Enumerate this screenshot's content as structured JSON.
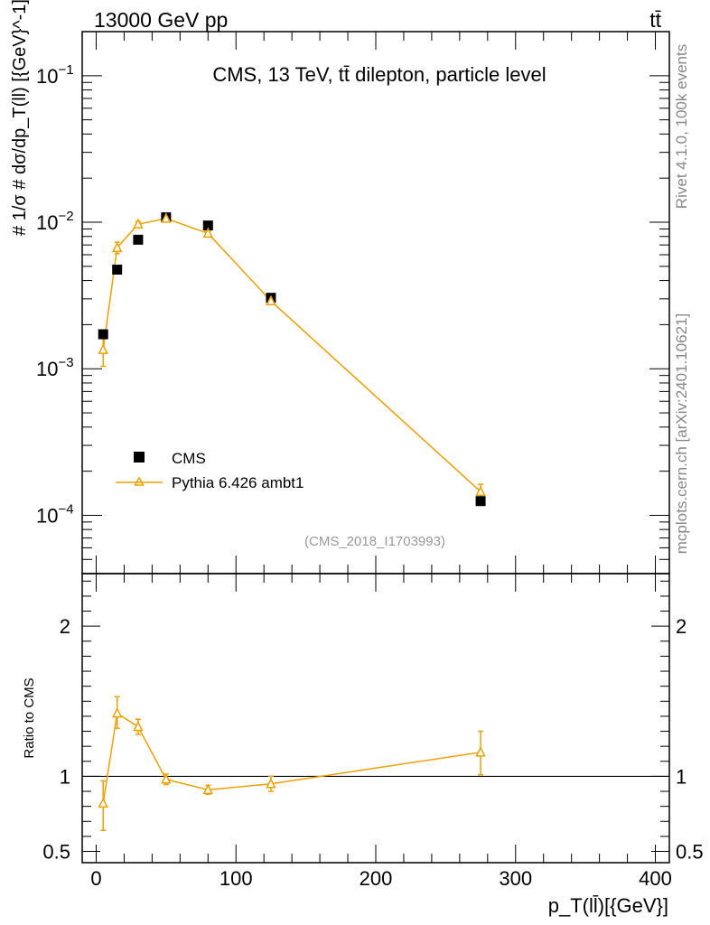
{
  "header": {
    "energy": "13000 GeV pp",
    "process": "tt̄"
  },
  "side_labels": {
    "rivet": "Rivet 4.1.0,  100k events",
    "source": "mcplots.cern.ch [arXiv:2401.10621]"
  },
  "chart_data": [
    {
      "type": "scatter",
      "panel": "main",
      "title": "CMS, 13 TeV, tt̄ dilepton, particle level",
      "analysis": "(CMS_2018_I1703993)",
      "ylabel_text": "# 1/σ # dσ/dp_T(ll) [{GeV}^-1]",
      "yscale": "log",
      "xlim": [
        -10,
        410
      ],
      "ylim": [
        4e-05,
        0.2
      ],
      "ytick_labels": [
        {
          "value": 0.1,
          "base": "10",
          "exp": "−1"
        },
        {
          "value": 0.01,
          "base": "10",
          "exp": "−2"
        },
        {
          "value": 0.001,
          "base": "10",
          "exp": "−3"
        },
        {
          "value": 0.0001,
          "base": "10",
          "exp": "−4"
        }
      ],
      "legend": [
        "CMS",
        "Pythia 6.426 ambt1"
      ],
      "series": [
        {
          "name": "CMS",
          "x": [
            5,
            15,
            30,
            50,
            80,
            125,
            275
          ],
          "y": [
            0.00172,
            0.00475,
            0.0076,
            0.0108,
            0.0095,
            0.00305,
            0.000125
          ],
          "color": "#000000"
        },
        {
          "name": "Pythia 6.426 ambt1",
          "x": [
            5,
            15,
            30,
            50,
            80,
            125,
            275
          ],
          "y": [
            0.00135,
            0.0067,
            0.0097,
            0.0106,
            0.0084,
            0.0029,
            0.000145
          ],
          "yerr_low": [
            0.00031,
            0.0006,
            0.0004,
            0.0003,
            0.0003,
            0.0001,
            1.5e-05
          ],
          "yerr_high": [
            0.00031,
            0.0006,
            0.0004,
            0.0003,
            0.0003,
            0.0001,
            1.8e-05
          ],
          "color": "#eea000"
        }
      ]
    },
    {
      "type": "line",
      "panel": "ratio",
      "ylabel": "Ratio to CMS",
      "xlabel": "p_T(ll̄)[{GeV}]",
      "xlim": [
        -10,
        410
      ],
      "ylim": [
        0.425,
        2.35
      ],
      "reference_line": 1,
      "yticks": [
        0.5,
        1,
        2
      ],
      "ytick_labels": [
        "0.5",
        "1",
        "2"
      ],
      "xticks": [
        0,
        100,
        200,
        300,
        400
      ],
      "xtick_labels": [
        "0",
        "100",
        "200",
        "300",
        "400"
      ],
      "series": [
        {
          "name": "Pythia 6.426 ambt1",
          "x": [
            5,
            15,
            30,
            50,
            80,
            125,
            275
          ],
          "y": [
            0.82,
            1.42,
            1.33,
            0.98,
            0.91,
            0.95,
            1.16
          ],
          "yerr_low": [
            0.18,
            0.1,
            0.05,
            0.035,
            0.03,
            0.05,
            0.15
          ],
          "yerr_high": [
            0.15,
            0.11,
            0.05,
            0.035,
            0.03,
            0.05,
            0.14
          ],
          "color": "#eea000"
        }
      ]
    }
  ]
}
